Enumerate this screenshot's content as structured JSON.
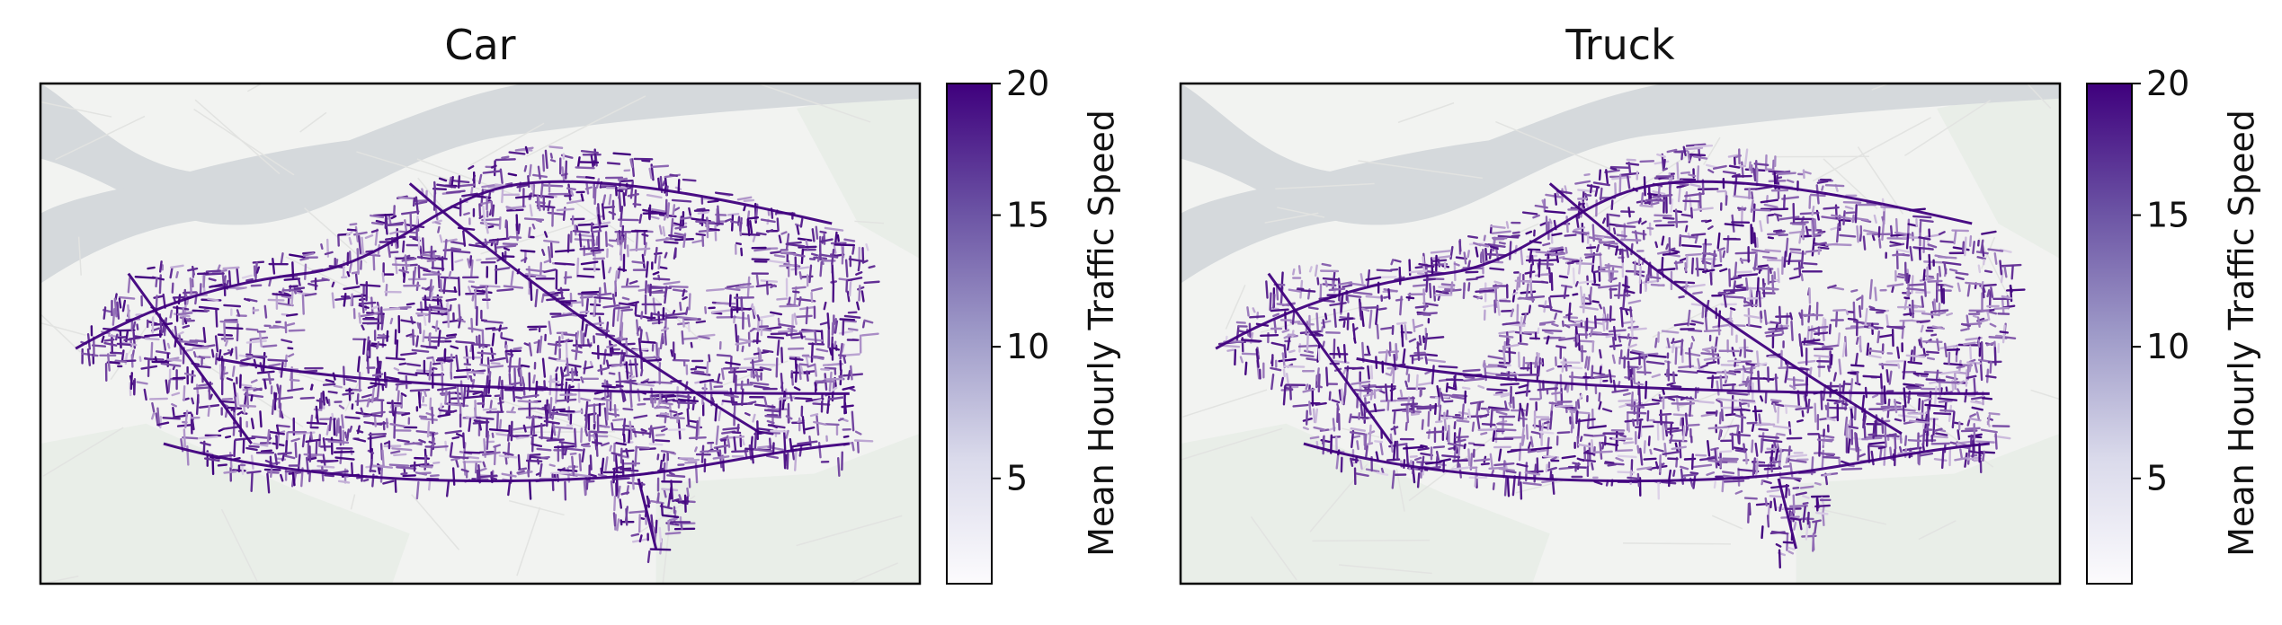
{
  "figure": {
    "panels": [
      {
        "title": "Car",
        "colorbar_label": "Mean Hourly Traffic Speed"
      },
      {
        "title": "Truck",
        "colorbar_label": "Mean Hourly Traffic Speed"
      }
    ]
  },
  "chart_data": [
    {
      "type": "heatmap",
      "title": "Car",
      "colorbar": {
        "label": "Mean Hourly Traffic Speed",
        "range": [
          1,
          20
        ],
        "ticks": [
          5,
          10,
          15,
          20
        ],
        "tick_labels": [
          "5",
          "10",
          "15",
          "20"
        ],
        "colormap": "Purples",
        "color_low": "#fcfbfd",
        "color_high": "#3f007d"
      },
      "axes": {
        "ticks_shown": false,
        "grid": false
      },
      "basemap": {
        "land": "#f2f3f1",
        "water": "#d5d9dc",
        "park": "#e6ece6"
      }
    },
    {
      "type": "heatmap",
      "title": "Truck",
      "colorbar": {
        "label": "Mean Hourly Traffic Speed",
        "range": [
          1,
          20
        ],
        "ticks": [
          5,
          10,
          15,
          20
        ],
        "tick_labels": [
          "5",
          "10",
          "15",
          "20"
        ],
        "colormap": "Purples",
        "color_low": "#fcfbfd",
        "color_high": "#3f007d"
      },
      "axes": {
        "ticks_shown": false,
        "grid": false
      },
      "basemap": {
        "land": "#f2f3f1",
        "water": "#d5d9dc",
        "park": "#e6ece6"
      }
    }
  ]
}
